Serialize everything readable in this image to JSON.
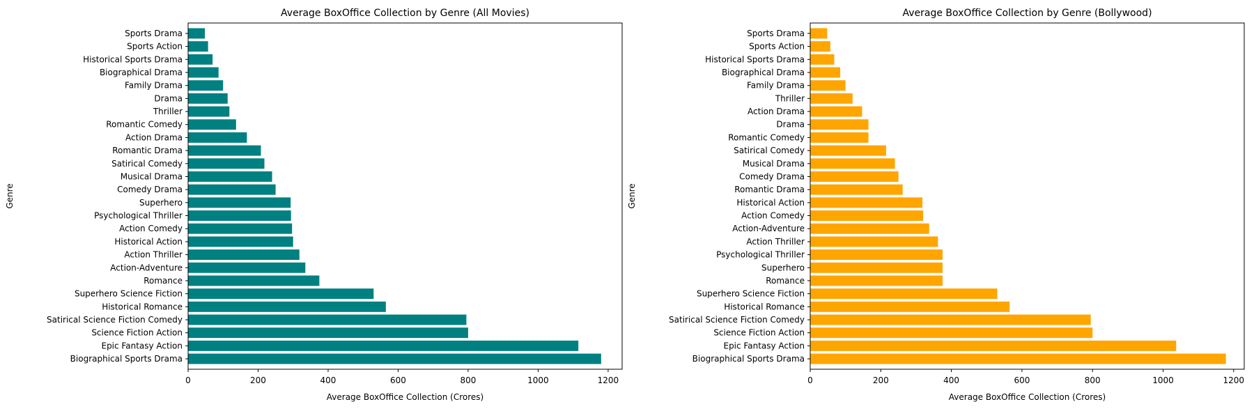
{
  "figure": {
    "charts": [
      {
        "title": "Average BoxOffice Collection by Genre (All Movies)",
        "xlabel": "Average BoxOffice Collection (Crores)",
        "ylabel": "Genre"
      },
      {
        "title": "Average BoxOffice Collection by Genre (Bollywood)",
        "xlabel": "Average BoxOffice Collection (Crores)",
        "ylabel": "Genre"
      }
    ]
  },
  "chart_data": [
    {
      "type": "bar",
      "orientation": "horizontal",
      "title": "Average BoxOffice Collection by Genre (All Movies)",
      "xlabel": "Average BoxOffice Collection (Crores)",
      "ylabel": "Genre",
      "xlim": [
        0,
        1240
      ],
      "xticks": [
        0,
        200,
        400,
        600,
        800,
        1000,
        1200
      ],
      "grid": false,
      "bar_color": "#008080",
      "categories": [
        "Biographical Sports Drama",
        "Epic Fantasy Action",
        "Science Fiction Action",
        "Satirical Science Fiction Comedy",
        "Historical Romance",
        "Superhero Science Fiction",
        "Romance",
        "Action-Adventure",
        "Action Thriller",
        "Historical Action",
        "Action Comedy",
        "Psychological Thriller",
        "Superhero",
        "Comedy Drama",
        "Musical Drama",
        "Satirical Comedy",
        "Romantic Drama",
        "Action Drama",
        "Romantic Comedy",
        "Thriller",
        "Drama",
        "Family Drama",
        "Biographical Drama",
        "Historical Sports Drama",
        "Sports Action",
        "Sports Drama"
      ],
      "values": [
        1180,
        1115,
        800,
        795,
        565,
        530,
        375,
        335,
        318,
        300,
        297,
        294,
        293,
        250,
        240,
        218,
        208,
        168,
        137,
        118,
        113,
        100,
        87,
        70,
        57,
        48
      ]
    },
    {
      "type": "bar",
      "orientation": "horizontal",
      "title": "Average BoxOffice Collection by Genre (Bollywood)",
      "xlabel": "Average BoxOffice Collection (Crores)",
      "ylabel": "Genre",
      "xlim": [
        0,
        1230
      ],
      "xticks": [
        0,
        200,
        400,
        600,
        800,
        1000,
        1200
      ],
      "grid": false,
      "bar_color": "#ffa500",
      "categories": [
        "Biographical Sports Drama",
        "Epic Fantasy Action",
        "Science Fiction Action",
        "Satirical Science Fiction Comedy",
        "Historical Romance",
        "Superhero Science Fiction",
        "Romance",
        "Superhero",
        "Psychological Thriller",
        "Action Thriller",
        "Action-Adventure",
        "Action Comedy",
        "Historical Action",
        "Romantic Drama",
        "Comedy Drama",
        "Musical Drama",
        "Satirical Comedy",
        "Romantic Comedy",
        "Drama",
        "Action Drama",
        "Thriller",
        "Family Drama",
        "Biographical Drama",
        "Historical Sports Drama",
        "Sports Action",
        "Sports Drama"
      ],
      "values": [
        1178,
        1037,
        800,
        795,
        565,
        530,
        375,
        375,
        375,
        362,
        337,
        320,
        318,
        262,
        250,
        240,
        215,
        165,
        165,
        147,
        120,
        100,
        85,
        68,
        57,
        48
      ]
    }
  ]
}
